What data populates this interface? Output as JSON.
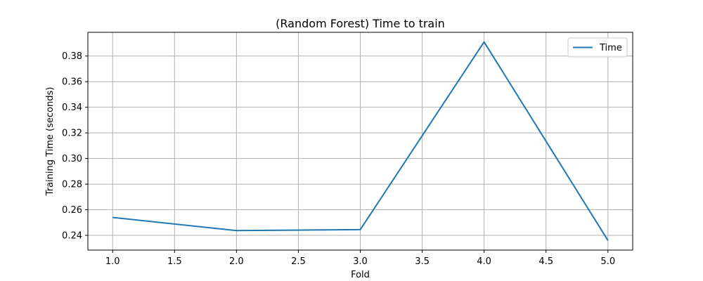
{
  "chart_data": {
    "type": "line",
    "title": "(Random Forest) Time to train",
    "xlabel": "Fold",
    "ylabel": "Training Time (seconds)",
    "x": [
      1.0,
      2.0,
      3.0,
      4.0,
      5.0
    ],
    "series": [
      {
        "name": "Time",
        "values": [
          0.254,
          0.2437,
          0.2445,
          0.391,
          0.236
        ],
        "color": "#1f77b4"
      }
    ],
    "xlim": [
      0.8,
      5.2
    ],
    "ylim": [
      0.2285,
      0.3985
    ],
    "xticks": [
      1.0,
      1.5,
      2.0,
      2.5,
      3.0,
      3.5,
      4.0,
      4.5,
      5.0
    ],
    "xtick_labels": [
      "1.0",
      "1.5",
      "2.0",
      "2.5",
      "3.0",
      "3.5",
      "4.0",
      "4.5",
      "5.0"
    ],
    "yticks": [
      0.24,
      0.26,
      0.28,
      0.3,
      0.32,
      0.34,
      0.36,
      0.38
    ],
    "ytick_labels": [
      "0.24",
      "0.26",
      "0.28",
      "0.30",
      "0.32",
      "0.34",
      "0.36",
      "0.38"
    ],
    "grid": true,
    "legend_position": "top-right"
  }
}
